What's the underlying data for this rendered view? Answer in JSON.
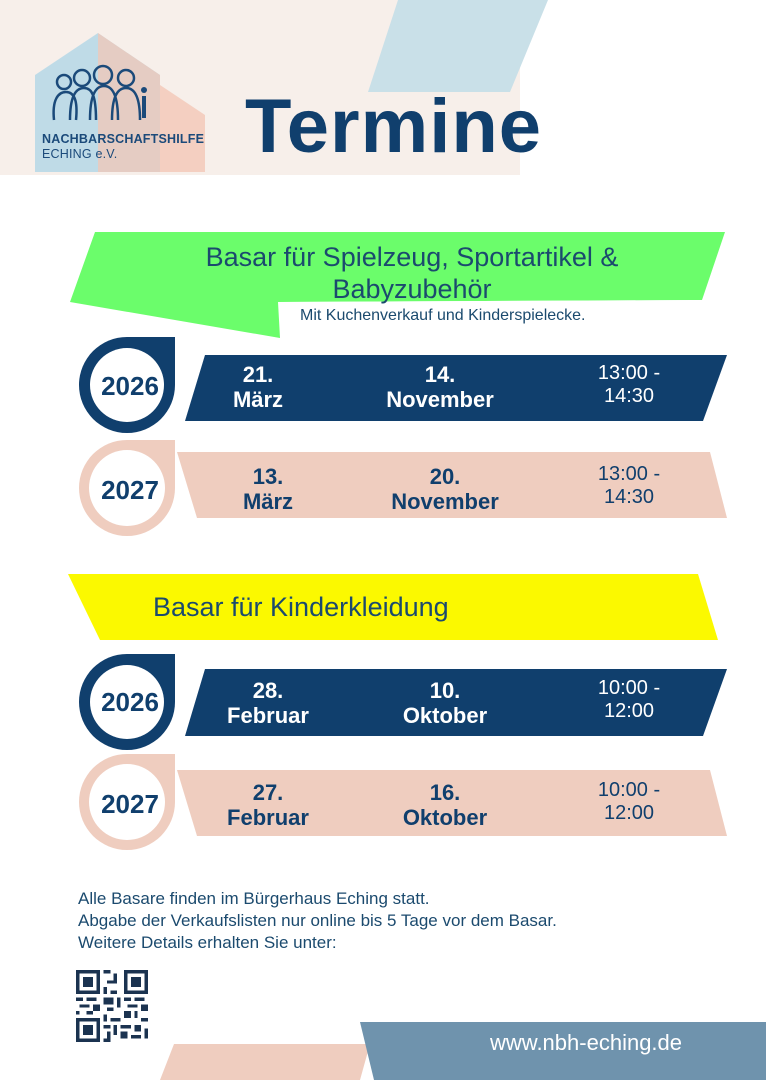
{
  "logo": {
    "line1": "NACHBARSCHAFTSHILFE",
    "line2": "ECHING e.V."
  },
  "title": "Termine",
  "colors": {
    "navy": "#103f6d",
    "green_banner": "#6bfd6b",
    "yellow_banner": "#fbf900",
    "pink": "#efcdbf",
    "light_blue": "#c9e0e8",
    "url_bar": "#6f93ad"
  },
  "sections": [
    {
      "title": "Basar für Spielzeug, Sportartikel & Babyzubehör",
      "subtitle": "Mit Kuchenverkauf und Kinderspielecke.",
      "rows": [
        {
          "year": "2026",
          "date1_day": "21.",
          "date1_month": "März",
          "date2_day": "14.",
          "date2_month": "November",
          "time_line1": "13:00 -",
          "time_line2": "14:30"
        },
        {
          "year": "2027",
          "date1_day": "13.",
          "date1_month": "März",
          "date2_day": "20.",
          "date2_month": "November",
          "time_line1": "13:00 -",
          "time_line2": "14:30"
        }
      ]
    },
    {
      "title": "Basar für Kinderkleidung",
      "rows": [
        {
          "year": "2026",
          "date1_day": "28.",
          "date1_month": "Februar",
          "date2_day": "10.",
          "date2_month": "Oktober",
          "time_line1": "10:00 -",
          "time_line2": "12:00"
        },
        {
          "year": "2027",
          "date1_day": "27.",
          "date1_month": "Februar",
          "date2_day": "16.",
          "date2_month": "Oktober",
          "time_line1": "10:00 -",
          "time_line2": "12:00"
        }
      ]
    }
  ],
  "footer": {
    "line1": "Alle Basare finden im Bürgerhaus Eching statt.",
    "line2": "Abgabe der Verkaufslisten nur online bis 5 Tage vor dem Basar.",
    "line3": "Weitere Details erhalten Sie unter:",
    "url": "www.nbh-eching.de"
  }
}
